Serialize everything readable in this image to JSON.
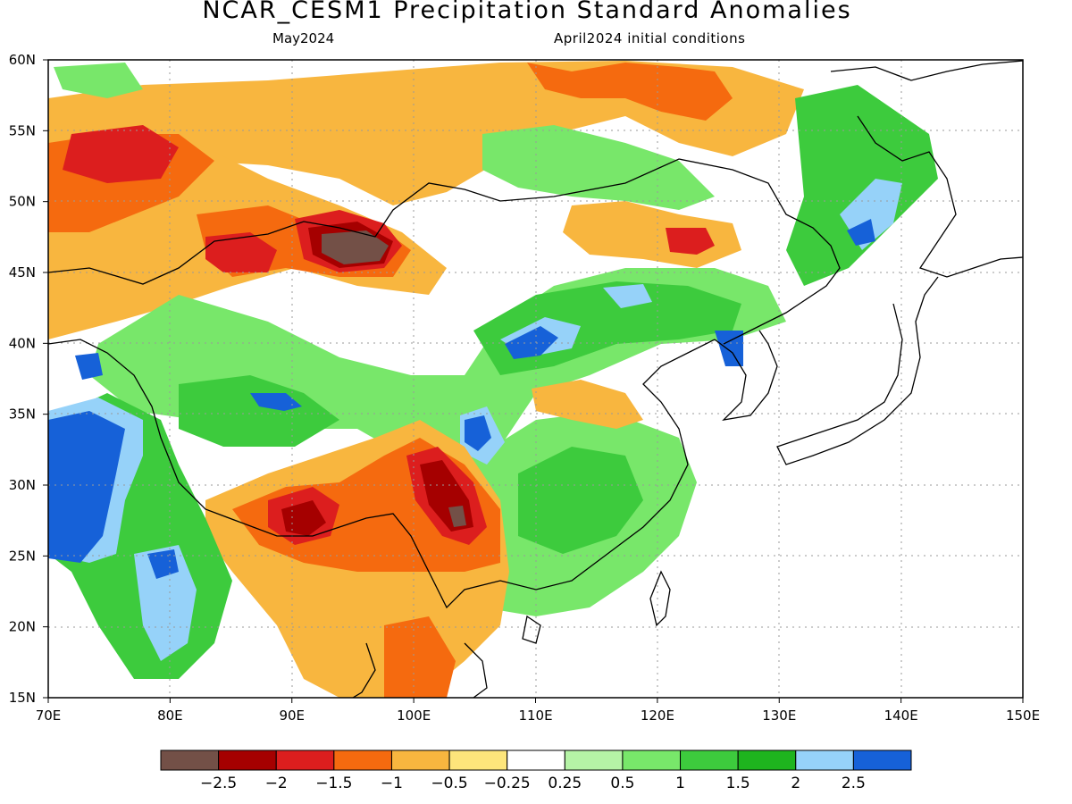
{
  "title": "NCAR_CESM1 Precipitation Standard Anomalies",
  "subtitle_left": "May2024",
  "subtitle_right": "April2024 initial conditions",
  "lon_labels": [
    "70E",
    "80E",
    "90E",
    "100E",
    "110E",
    "120E",
    "130E",
    "140E",
    "150E"
  ],
  "lat_labels": [
    "15N",
    "20N",
    "25N",
    "30N",
    "35N",
    "40N",
    "45N",
    "50N",
    "55N",
    "60N"
  ],
  "lon_range": [
    70,
    150
  ],
  "lat_range": [
    15,
    60
  ],
  "colorbar": {
    "colors": [
      "#735047",
      "#a50000",
      "#dc1e1e",
      "#f56a0f",
      "#f8b63f",
      "#fde57b",
      "#ffffff",
      "#b5f3a6",
      "#78e76a",
      "#3dcb3d",
      "#1eb41e",
      "#96d2f9",
      "#1661d8"
    ],
    "labels": [
      "−2.5",
      "−2",
      "−1.5",
      "−1",
      "−0.5",
      "−0.25",
      "0.25",
      "0.5",
      "1",
      "1.5",
      "2",
      "2.5"
    ]
  },
  "colors": {
    "coastline": "#000000",
    "grid": "#9a9a9a"
  }
}
